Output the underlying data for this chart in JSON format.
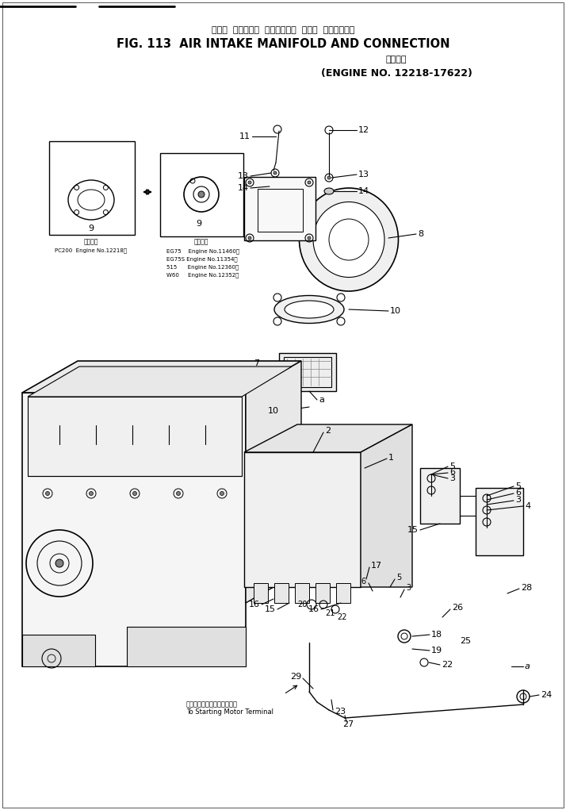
{
  "title_jp": "エアー  インテーク  マニホールド  および  コネクション",
  "title_en": "FIG. 113  AIR INTAKE MANIFOLD AND CONNECTION",
  "subtitle_jp": "適用号機",
  "subtitle_en": "(ENGINE NO. 12218-17622)",
  "background_color": "#ffffff",
  "applicability_left_jp": "適用号機",
  "applicability_left_en": "PC200  Engine No.12218〜",
  "applicability_right_jp": "適用号機",
  "applicability_right_lines": [
    "EG75    Engine No.11460〜",
    "EG75S Engine No.11354〜",
    "515      Engine No.12360〜",
    "W60     Engine No.12352〜"
  ],
  "note_bottom_jp": "スターティングモータ端子へ",
  "note_bottom_en": "To Starting Motor Terminal"
}
